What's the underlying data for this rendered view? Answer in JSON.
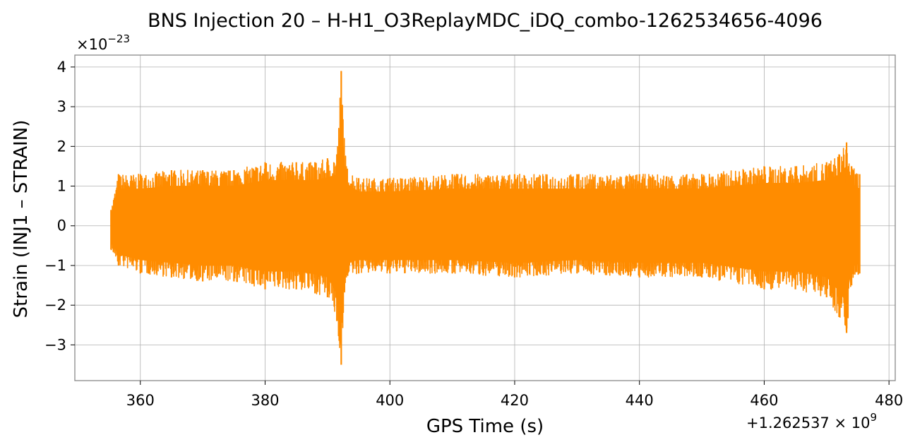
{
  "chart_data": {
    "type": "line",
    "title": "BNS Injection 20 – H-H1_O3ReplayMDC_iDQ_combo-1262534656-4096",
    "xlabel": "GPS Time (s)",
    "ylabel": "Strain (INJ1 – STRAIN)",
    "x_offset_label": "+1.262537 × 10",
    "x_offset_exp": "9",
    "y_scale_label": "×10",
    "y_scale_exp": "−23",
    "xlim": [
      349.5,
      481.0
    ],
    "ylim": [
      -3.9,
      4.3
    ],
    "xticks": [
      360,
      380,
      400,
      420,
      440,
      460,
      480
    ],
    "xtick_labels": [
      "360",
      "380",
      "400",
      "420",
      "440",
      "460",
      "480"
    ],
    "yticks": [
      -3,
      -2,
      -1,
      0,
      1,
      2,
      3,
      4
    ],
    "ytick_labels": [
      "−3",
      "−2",
      "−1",
      "0",
      "1",
      "2",
      "3",
      "4"
    ],
    "grid": true,
    "series": [
      {
        "color": "#ff8c00",
        "x_start": 355.3,
        "x_end": 475.3,
        "envelope": {
          "x": [
            355.3,
            356.5,
            360,
            365,
            370,
            375,
            380,
            385,
            388,
            390,
            391.5,
            392.2,
            393,
            395,
            400,
            410,
            420,
            430,
            440,
            450,
            460,
            465,
            470,
            472,
            473.2,
            474,
            475.3
          ],
          "upper": [
            0.4,
            1.3,
            1.3,
            1.4,
            1.4,
            1.4,
            1.6,
            1.6,
            1.6,
            1.7,
            1.8,
            3.9,
            1.5,
            1.2,
            1.2,
            1.3,
            1.3,
            1.3,
            1.3,
            1.3,
            1.5,
            1.5,
            1.6,
            1.8,
            2.1,
            1.5,
            1.3
          ],
          "lower": [
            -0.6,
            -1.0,
            -1.2,
            -1.3,
            -1.4,
            -1.4,
            -1.6,
            -1.6,
            -1.7,
            -1.8,
            -2.4,
            -3.5,
            -1.3,
            -1.2,
            -1.2,
            -1.2,
            -1.3,
            -1.2,
            -1.3,
            -1.3,
            -1.6,
            -1.6,
            -1.8,
            -2.3,
            -2.7,
            -1.5,
            -1.2
          ]
        }
      }
    ]
  }
}
